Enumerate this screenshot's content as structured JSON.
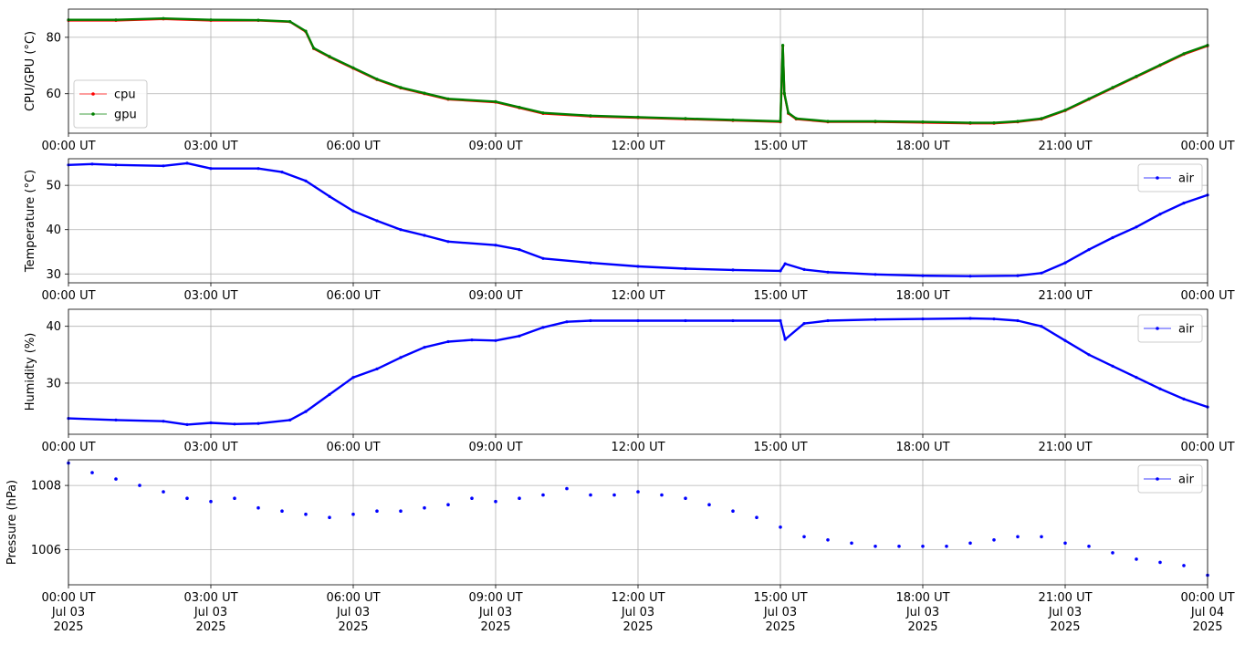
{
  "chart_data": [
    {
      "type": "line",
      "ylabel": "CPU/GPU (°C)",
      "ylim": [
        46,
        90
      ],
      "yticks": [
        60,
        80
      ],
      "x_ticks": [
        "00:00 UT",
        "03:00 UT",
        "06:00 UT",
        "09:00 UT",
        "12:00 UT",
        "15:00 UT",
        "18:00 UT",
        "21:00 UT",
        "00:00 UT"
      ],
      "x_tick_dates": [],
      "xlim": [
        "2025-07-03 00:00",
        "2025-07-04 00:00"
      ],
      "grid": true,
      "legend_position": "lower-left",
      "series": [
        {
          "name": "cpu",
          "color": "#ff0000",
          "x": [
            "2025-07-03 00:00",
            "2025-07-03 01:00",
            "2025-07-03 02:00",
            "2025-07-03 03:00",
            "2025-07-03 04:00",
            "2025-07-03 04:40",
            "2025-07-03 05:00",
            "2025-07-03 05:10",
            "2025-07-03 05:30",
            "2025-07-03 06:00",
            "2025-07-03 06:30",
            "2025-07-03 07:00",
            "2025-07-03 07:30",
            "2025-07-03 08:00",
            "2025-07-03 09:00",
            "2025-07-03 09:30",
            "2025-07-03 10:00",
            "2025-07-03 11:00",
            "2025-07-03 12:00",
            "2025-07-03 13:00",
            "2025-07-03 14:00",
            "2025-07-03 15:00",
            "2025-07-03 15:03",
            "2025-07-03 15:05",
            "2025-07-03 15:10",
            "2025-07-03 15:20",
            "2025-07-03 16:00",
            "2025-07-03 17:00",
            "2025-07-03 18:00",
            "2025-07-03 19:00",
            "2025-07-03 19:30",
            "2025-07-03 20:00",
            "2025-07-03 20:30",
            "2025-07-03 21:00",
            "2025-07-03 21:30",
            "2025-07-03 22:00",
            "2025-07-03 22:30",
            "2025-07-03 23:00",
            "2025-07-03 23:30",
            "2025-07-04 00:00"
          ],
          "y": [
            86,
            86,
            86.5,
            86,
            86,
            85.5,
            82,
            76,
            73,
            69,
            65,
            62,
            60,
            58,
            57,
            55,
            53,
            52,
            51.5,
            51,
            50.5,
            50,
            77,
            60,
            53,
            51,
            50,
            50,
            49.8,
            49.5,
            49.5,
            50,
            51,
            54,
            58,
            62,
            66,
            70,
            74,
            77
          ]
        },
        {
          "name": "gpu",
          "color": "#008000",
          "x": [
            "2025-07-03 00:00",
            "2025-07-03 01:00",
            "2025-07-03 02:00",
            "2025-07-03 03:00",
            "2025-07-03 04:00",
            "2025-07-03 04:40",
            "2025-07-03 05:00",
            "2025-07-03 05:10",
            "2025-07-03 05:30",
            "2025-07-03 06:00",
            "2025-07-03 06:30",
            "2025-07-03 07:00",
            "2025-07-03 07:30",
            "2025-07-03 08:00",
            "2025-07-03 09:00",
            "2025-07-03 09:30",
            "2025-07-03 10:00",
            "2025-07-03 11:00",
            "2025-07-03 12:00",
            "2025-07-03 13:00",
            "2025-07-03 14:00",
            "2025-07-03 15:00",
            "2025-07-03 15:03",
            "2025-07-03 15:05",
            "2025-07-03 15:10",
            "2025-07-03 15:20",
            "2025-07-03 16:00",
            "2025-07-03 17:00",
            "2025-07-03 18:00",
            "2025-07-03 19:00",
            "2025-07-03 19:30",
            "2025-07-03 20:00",
            "2025-07-03 20:30",
            "2025-07-03 21:00",
            "2025-07-03 21:30",
            "2025-07-03 22:00",
            "2025-07-03 22:30",
            "2025-07-03 23:00",
            "2025-07-03 23:30",
            "2025-07-04 00:00"
          ],
          "y": [
            86.2,
            86.2,
            86.7,
            86.2,
            86.1,
            85.6,
            82.2,
            76.2,
            73.2,
            69.2,
            65.2,
            62.2,
            60.2,
            58.2,
            57.2,
            55.2,
            53.2,
            52.2,
            51.7,
            51.2,
            50.7,
            50.2,
            77.2,
            60.2,
            53.2,
            51.2,
            50.2,
            50.2,
            50,
            49.7,
            49.7,
            50.2,
            51.2,
            54.2,
            58.2,
            62.2,
            66.2,
            70.2,
            74.2,
            77.2
          ]
        }
      ]
    },
    {
      "type": "line",
      "ylabel": "Temperature (°C)",
      "ylim": [
        28,
        56
      ],
      "yticks": [
        30,
        40,
        50
      ],
      "x_ticks": [
        "00:00 UT",
        "03:00 UT",
        "06:00 UT",
        "09:00 UT",
        "12:00 UT",
        "15:00 UT",
        "18:00 UT",
        "21:00 UT",
        "00:00 UT"
      ],
      "x_tick_dates": [],
      "xlim": [
        "2025-07-03 00:00",
        "2025-07-04 00:00"
      ],
      "grid": true,
      "legend_position": "upper-right",
      "series": [
        {
          "name": "air",
          "color": "#0000ff",
          "x": [
            "2025-07-03 00:00",
            "2025-07-03 00:30",
            "2025-07-03 01:00",
            "2025-07-03 02:00",
            "2025-07-03 02:30",
            "2025-07-03 03:00",
            "2025-07-03 04:00",
            "2025-07-03 04:30",
            "2025-07-03 05:00",
            "2025-07-03 05:30",
            "2025-07-03 06:00",
            "2025-07-03 06:30",
            "2025-07-03 07:00",
            "2025-07-03 07:30",
            "2025-07-03 08:00",
            "2025-07-03 09:00",
            "2025-07-03 09:30",
            "2025-07-03 10:00",
            "2025-07-03 11:00",
            "2025-07-03 12:00",
            "2025-07-03 13:00",
            "2025-07-03 14:00",
            "2025-07-03 15:00",
            "2025-07-03 15:06",
            "2025-07-03 15:30",
            "2025-07-03 16:00",
            "2025-07-03 17:00",
            "2025-07-03 18:00",
            "2025-07-03 19:00",
            "2025-07-03 20:00",
            "2025-07-03 20:30",
            "2025-07-03 21:00",
            "2025-07-03 21:30",
            "2025-07-03 22:00",
            "2025-07-03 22:30",
            "2025-07-03 23:00",
            "2025-07-03 23:30",
            "2025-07-04 00:00"
          ],
          "y": [
            54.6,
            54.8,
            54.6,
            54.4,
            55,
            53.8,
            53.8,
            53,
            51,
            47.5,
            44.2,
            42,
            40,
            38.7,
            37.3,
            36.5,
            35.5,
            33.5,
            32.5,
            31.7,
            31.2,
            30.9,
            30.7,
            32.3,
            31,
            30.4,
            29.9,
            29.6,
            29.5,
            29.6,
            30.2,
            32.5,
            35.5,
            38.2,
            40.6,
            43.5,
            46,
            47.8
          ]
        }
      ]
    },
    {
      "type": "line",
      "ylabel": "Humidity (%)",
      "ylim": [
        21,
        43
      ],
      "yticks": [
        30,
        40
      ],
      "x_ticks": [
        "00:00 UT",
        "03:00 UT",
        "06:00 UT",
        "09:00 UT",
        "12:00 UT",
        "15:00 UT",
        "18:00 UT",
        "21:00 UT",
        "00:00 UT"
      ],
      "x_tick_dates": [],
      "xlim": [
        "2025-07-03 00:00",
        "2025-07-04 00:00"
      ],
      "grid": true,
      "legend_position": "upper-right",
      "series": [
        {
          "name": "air",
          "color": "#0000ff",
          "x": [
            "2025-07-03 00:00",
            "2025-07-03 01:00",
            "2025-07-03 02:00",
            "2025-07-03 02:30",
            "2025-07-03 03:00",
            "2025-07-03 03:30",
            "2025-07-03 04:00",
            "2025-07-03 04:40",
            "2025-07-03 05:00",
            "2025-07-03 05:30",
            "2025-07-03 06:00",
            "2025-07-03 06:30",
            "2025-07-03 07:00",
            "2025-07-03 07:30",
            "2025-07-03 08:00",
            "2025-07-03 08:30",
            "2025-07-03 09:00",
            "2025-07-03 09:30",
            "2025-07-03 10:00",
            "2025-07-03 10:30",
            "2025-07-03 11:00",
            "2025-07-03 12:00",
            "2025-07-03 13:00",
            "2025-07-03 14:00",
            "2025-07-03 15:00",
            "2025-07-03 15:06",
            "2025-07-03 15:30",
            "2025-07-03 16:00",
            "2025-07-03 17:00",
            "2025-07-03 18:00",
            "2025-07-03 19:00",
            "2025-07-03 19:30",
            "2025-07-03 20:00",
            "2025-07-03 20:30",
            "2025-07-03 21:00",
            "2025-07-03 21:30",
            "2025-07-03 22:00",
            "2025-07-03 22:30",
            "2025-07-03 23:00",
            "2025-07-03 23:30",
            "2025-07-04 00:00"
          ],
          "y": [
            23.8,
            23.5,
            23.3,
            22.7,
            23,
            22.8,
            22.9,
            23.5,
            25,
            28,
            31,
            32.5,
            34.5,
            36.3,
            37.3,
            37.6,
            37.5,
            38.3,
            39.8,
            40.8,
            41,
            41,
            41,
            41,
            41,
            37.7,
            40.5,
            41,
            41.2,
            41.3,
            41.4,
            41.3,
            41,
            40,
            37.5,
            35,
            33,
            31,
            29,
            27.2,
            25.8
          ]
        }
      ]
    },
    {
      "type": "scatter",
      "ylabel": "Pressure (hPa)",
      "ylim": [
        1004.9,
        1008.8
      ],
      "yticks": [
        1006,
        1008
      ],
      "x_ticks": [
        "00:00 UT",
        "03:00 UT",
        "06:00 UT",
        "09:00 UT",
        "12:00 UT",
        "15:00 UT",
        "18:00 UT",
        "21:00 UT",
        "00:00 UT"
      ],
      "x_tick_dates": [
        [
          "Jul 03",
          "2025"
        ],
        [
          "Jul 03",
          "2025"
        ],
        [
          "Jul 03",
          "2025"
        ],
        [
          "Jul 03",
          "2025"
        ],
        [
          "Jul 03",
          "2025"
        ],
        [
          "Jul 03",
          "2025"
        ],
        [
          "Jul 03",
          "2025"
        ],
        [
          "Jul 03",
          "2025"
        ],
        [
          "Jul 04",
          "2025"
        ]
      ],
      "xlim": [
        "2025-07-03 00:00",
        "2025-07-04 00:00"
      ],
      "grid": true,
      "legend_position": "upper-right",
      "series": [
        {
          "name": "air",
          "color": "#0000ff",
          "x": [
            "2025-07-03 00:00",
            "2025-07-03 00:30",
            "2025-07-03 01:00",
            "2025-07-03 01:30",
            "2025-07-03 02:00",
            "2025-07-03 02:30",
            "2025-07-03 03:00",
            "2025-07-03 03:30",
            "2025-07-03 04:00",
            "2025-07-03 04:30",
            "2025-07-03 05:00",
            "2025-07-03 05:30",
            "2025-07-03 06:00",
            "2025-07-03 06:30",
            "2025-07-03 07:00",
            "2025-07-03 07:30",
            "2025-07-03 08:00",
            "2025-07-03 08:30",
            "2025-07-03 09:00",
            "2025-07-03 09:30",
            "2025-07-03 10:00",
            "2025-07-03 10:30",
            "2025-07-03 11:00",
            "2025-07-03 11:30",
            "2025-07-03 12:00",
            "2025-07-03 12:30",
            "2025-07-03 13:00",
            "2025-07-03 13:30",
            "2025-07-03 14:00",
            "2025-07-03 14:30",
            "2025-07-03 15:00",
            "2025-07-03 15:30",
            "2025-07-03 16:00",
            "2025-07-03 16:30",
            "2025-07-03 17:00",
            "2025-07-03 17:30",
            "2025-07-03 18:00",
            "2025-07-03 18:30",
            "2025-07-03 19:00",
            "2025-07-03 19:30",
            "2025-07-03 20:00",
            "2025-07-03 20:30",
            "2025-07-03 21:00",
            "2025-07-03 21:30",
            "2025-07-03 22:00",
            "2025-07-03 22:30",
            "2025-07-03 23:00",
            "2025-07-03 23:30",
            "2025-07-04 00:00"
          ],
          "y": [
            1008.7,
            1008.4,
            1008.2,
            1008,
            1007.8,
            1007.6,
            1007.5,
            1007.6,
            1007.3,
            1007.2,
            1007.1,
            1007,
            1007.1,
            1007.2,
            1007.2,
            1007.3,
            1007.4,
            1007.6,
            1007.5,
            1007.6,
            1007.7,
            1007.9,
            1007.7,
            1007.7,
            1007.8,
            1007.7,
            1007.6,
            1007.4,
            1007.2,
            1007,
            1006.7,
            1006.4,
            1006.3,
            1006.2,
            1006.1,
            1006.1,
            1006.1,
            1006.1,
            1006.2,
            1006.3,
            1006.4,
            1006.4,
            1006.2,
            1006.1,
            1005.9,
            1005.7,
            1005.6,
            1005.5,
            1005.2
          ]
        }
      ]
    }
  ]
}
